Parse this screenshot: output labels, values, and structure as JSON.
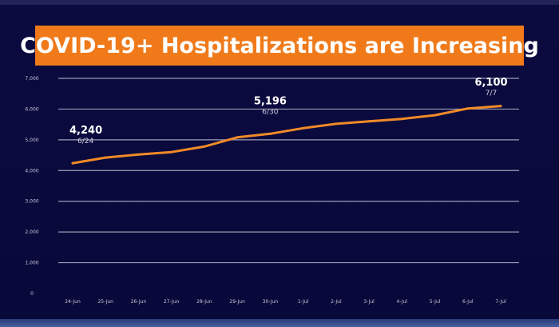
{
  "chart_data": {
    "type": "line",
    "title": "COVID-19+ Hospitalizations are Increasing",
    "categories": [
      "24-Jun",
      "25-Jun",
      "26-Jun",
      "27-Jun",
      "28-Jun",
      "29-Jun",
      "30-Jun",
      "1-Jul",
      "2-Jul",
      "3-Jul",
      "4-Jul",
      "5-Jul",
      "6-Jul",
      "7-Jul"
    ],
    "series": [
      {
        "values": [
          4240,
          4420,
          4520,
          4600,
          4780,
          5080,
          5196,
          5380,
          5520,
          5600,
          5680,
          5800,
          6020,
          6100
        ]
      }
    ],
    "ylim": [
      0,
      7000
    ],
    "yticks": [
      "0",
      "1,000",
      "2,000",
      "3,000",
      "4,000",
      "5,000",
      "6,000",
      "7,000"
    ],
    "grid": true,
    "line_color": "#f08a28",
    "annotations": [
      {
        "index": 0,
        "value": "4,240",
        "date": "6/24"
      },
      {
        "index": 6,
        "value": "5,196",
        "date": "6/30"
      },
      {
        "index": 13,
        "value": "6,100",
        "date": "7/7"
      }
    ]
  }
}
